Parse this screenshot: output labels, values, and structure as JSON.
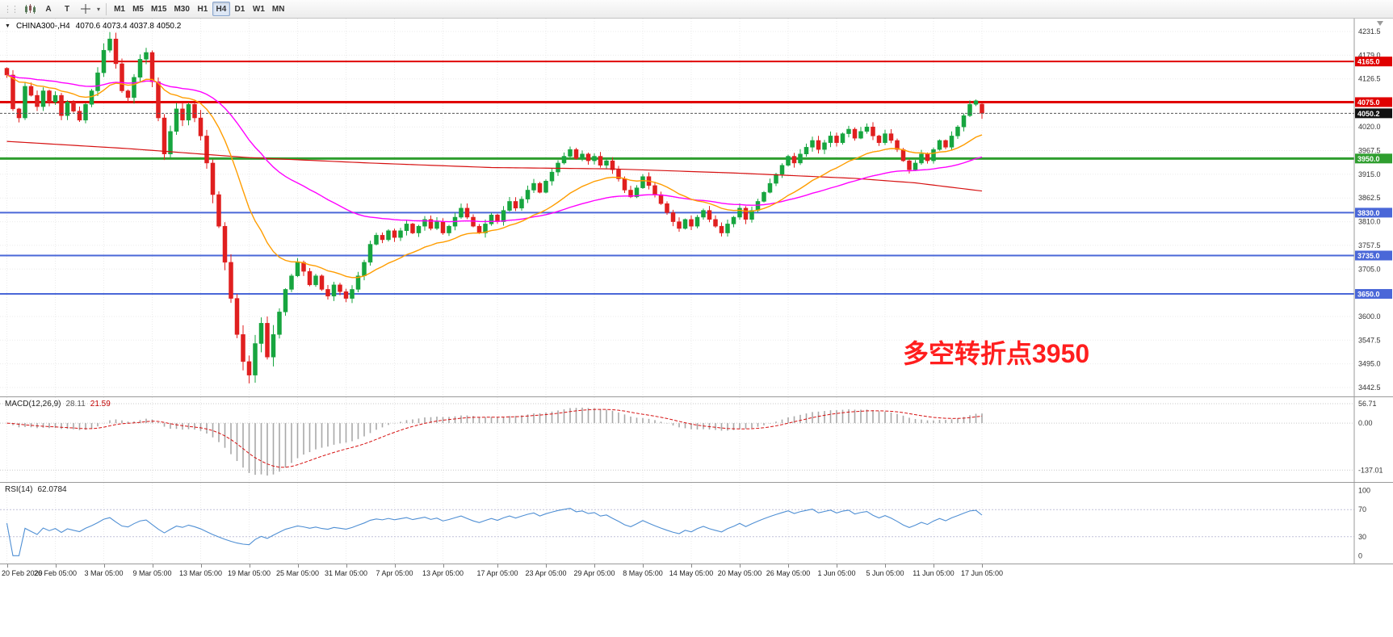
{
  "toolbar": {
    "text_tool": "A",
    "type_tool": "T",
    "timeframes": [
      {
        "label": "M1",
        "active": false
      },
      {
        "label": "M5",
        "active": false
      },
      {
        "label": "M15",
        "active": false
      },
      {
        "label": "M30",
        "active": false
      },
      {
        "label": "H1",
        "active": false
      },
      {
        "label": "H4",
        "active": true
      },
      {
        "label": "D1",
        "active": false
      },
      {
        "label": "W1",
        "active": false
      },
      {
        "label": "MN",
        "active": false
      }
    ]
  },
  "chart": {
    "title": "CHINA300-,H4",
    "ohlc": "4070.6 4073.4 4037.8 4050.2",
    "annotation": "多空转折点3950",
    "annotation_color": "#ff1e1e",
    "current_price_label": "4050.2",
    "price_axis": [
      "4231.5",
      "4179.0",
      "4126.5",
      "4020.0",
      "3967.5",
      "3915.0",
      "3862.5",
      "3810.0",
      "3757.5",
      "3705.0",
      "3600.0",
      "3547.5",
      "3495.0",
      "3442.5"
    ],
    "badges": [
      {
        "label": "4165.0",
        "price": 4165.0,
        "bg": "#e00000"
      },
      {
        "label": "4075.0",
        "price": 4075.0,
        "bg": "#e00000"
      },
      {
        "label": "4050.2",
        "price": 4050.2,
        "bg": "#111111"
      },
      {
        "label": "3950.0",
        "price": 3950.0,
        "bg": "#2f9e2f"
      },
      {
        "label": "3830.0",
        "price": 3830.0,
        "bg": "#4a67d8"
      },
      {
        "label": "3735.0",
        "price": 3735.0,
        "bg": "#4a67d8"
      },
      {
        "label": "3650.0",
        "price": 3650.0,
        "bg": "#4a67d8"
      }
    ]
  },
  "macd_panel": {
    "label": "MACD(12,26,9)",
    "value_main": "28.11",
    "value_signal": "21.59",
    "axis": [
      "56.71",
      "0.00",
      "-137.01"
    ]
  },
  "rsi_panel": {
    "label": "RSI(14)",
    "value": "62.0784",
    "axis": [
      "100",
      "70",
      "30",
      "0"
    ]
  },
  "time_axis": [
    "20 Feb 2020",
    "26 Feb 05:00",
    "3 Mar 05:00",
    "9 Mar 05:00",
    "13 Mar 05:00",
    "19 Mar 05:00",
    "25 Mar 05:00",
    "31 Mar 05:00",
    "7 Apr 05:00",
    "13 Apr 05:00",
    "17 Apr 05:00",
    "23 Apr 05:00",
    "29 Apr 05:00",
    "8 May 05:00",
    "14 May 05:00",
    "20 May 05:00",
    "26 May 05:00",
    "1 Jun 05:00",
    "5 Jun 05:00",
    "11 Jun 05:00",
    "17 Jun 05:00"
  ],
  "chart_data": {
    "type": "candlestick",
    "symbol": "CHINA300-",
    "timeframe": "H4",
    "title": "CHINA300-,H4",
    "last_bar": {
      "open": 4070.6,
      "high": 4073.4,
      "low": 4037.8,
      "close": 4050.2
    },
    "price_range": [
      3442.5,
      4231.5
    ],
    "first_open": 4150,
    "closes": [
      4135,
      4060,
      4040,
      4110,
      4090,
      4065,
      4100,
      4075,
      4090,
      4045,
      4075,
      4055,
      4035,
      4070,
      4100,
      4140,
      4190,
      4215,
      4160,
      4100,
      4085,
      4130,
      4170,
      4185,
      4120,
      4040,
      3960,
      4010,
      4060,
      4035,
      4070,
      4040,
      4000,
      3940,
      3870,
      3800,
      3720,
      3640,
      3560,
      3500,
      3470,
      3540,
      3585,
      3510,
      3560,
      3610,
      3660,
      3690,
      3720,
      3700,
      3670,
      3690,
      3660,
      3645,
      3670,
      3655,
      3640,
      3660,
      3690,
      3720,
      3760,
      3780,
      3770,
      3790,
      3775,
      3790,
      3805,
      3785,
      3800,
      3815,
      3795,
      3810,
      3785,
      3800,
      3820,
      3840,
      3820,
      3800,
      3785,
      3805,
      3825,
      3810,
      3835,
      3855,
      3840,
      3860,
      3880,
      3895,
      3875,
      3900,
      3920,
      3940,
      3955,
      3970,
      3950,
      3960,
      3945,
      3955,
      3935,
      3945,
      3925,
      3905,
      3880,
      3865,
      3885,
      3910,
      3890,
      3870,
      3850,
      3830,
      3810,
      3795,
      3815,
      3800,
      3820,
      3835,
      3815,
      3800,
      3785,
      3805,
      3820,
      3840,
      3815,
      3835,
      3855,
      3875,
      3895,
      3915,
      3935,
      3955,
      3940,
      3960,
      3975,
      3990,
      3970,
      3985,
      4000,
      3985,
      4005,
      4015,
      3995,
      4010,
      4020,
      4000,
      3985,
      4005,
      3990,
      3970,
      3945,
      3925,
      3940,
      3960,
      3945,
      3970,
      3990,
      3975,
      4000,
      4020,
      4045,
      4070,
      4078,
      4050.2
    ],
    "horizontal_lines": [
      {
        "price": 4165.0,
        "color": "#e00000",
        "width": 2
      },
      {
        "price": 4075.0,
        "color": "#e00000",
        "width": 3
      },
      {
        "price": 3950.0,
        "color": "#2f9e2f",
        "width": 3
      },
      {
        "price": 3830.0,
        "color": "#4a67d8",
        "width": 2
      },
      {
        "price": 3735.0,
        "color": "#4a67d8",
        "width": 2
      },
      {
        "price": 3650.0,
        "color": "#4a67d8",
        "width": 2
      }
    ],
    "current_price": 4050.2,
    "up_color": "#17a53f",
    "down_color": "#e01f1f",
    "grid_color": "#ebebeb",
    "moving_averages": {
      "fast_ema_period": 20,
      "fast_color": "#ff9d00",
      "mid_ema_period": 55,
      "mid_color": "#ff00ff",
      "slow_color": "#d61111",
      "slow_waypoints": [
        [
          0,
          3988
        ],
        [
          20,
          3972
        ],
        [
          40,
          3952
        ],
        [
          60,
          3940
        ],
        [
          80,
          3930
        ],
        [
          100,
          3927
        ],
        [
          120,
          3918
        ],
        [
          140,
          3906
        ],
        [
          150,
          3896
        ],
        [
          161,
          3878
        ]
      ]
    },
    "macd": {
      "fast": 12,
      "slow": 26,
      "signal_period": 9,
      "last_main": 28.11,
      "last_signal": 21.59,
      "ymax": 56.71,
      "ymin": -137.01,
      "histogram_color": "#a8a8a8",
      "signal_color": "#d61111"
    },
    "rsi": {
      "period": 14,
      "last": 62.0784,
      "levels": [
        70,
        30
      ],
      "color": "#4f8fd4",
      "ylim": [
        0,
        100
      ]
    },
    "x_labels": [
      "20 Feb 2020",
      "26 Feb 05:00",
      "3 Mar 05:00",
      "9 Mar 05:00",
      "13 Mar 05:00",
      "19 Mar 05:00",
      "25 Mar 05:00",
      "31 Mar 05:00",
      "7 Apr 05:00",
      "13 Apr 05:00",
      "17 Apr 05:00",
      "23 Apr 05:00",
      "29 Apr 05:00",
      "8 May 05:00",
      "14 May 05:00",
      "20 May 05:00",
      "26 May 05:00",
      "1 Jun 05:00",
      "5 Jun 05:00",
      "11 Jun 05:00",
      "17 Jun 05:00"
    ]
  }
}
